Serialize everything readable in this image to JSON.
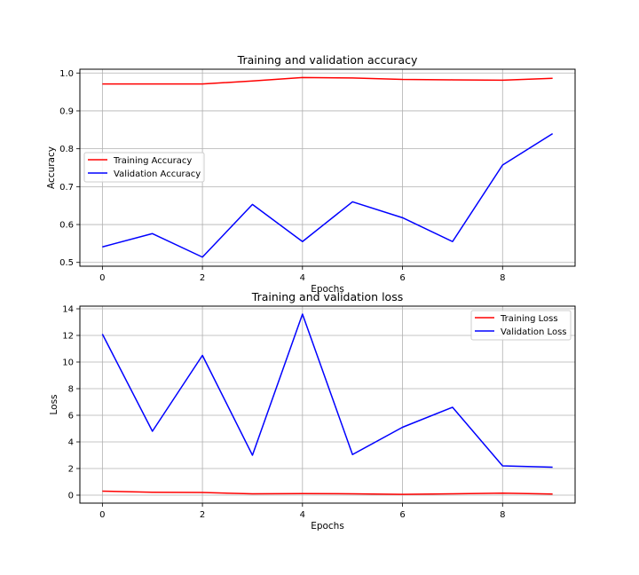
{
  "chart_data": [
    {
      "type": "line",
      "title": "Training and validation accuracy",
      "xlabel": "Epochs",
      "ylabel": "Accuracy",
      "x": [
        0,
        1,
        2,
        3,
        4,
        5,
        6,
        7,
        8,
        9
      ],
      "xlim": [
        -0.45,
        9.45
      ],
      "ylim": [
        0.49,
        1.01
      ],
      "xticks": [
        0,
        2,
        4,
        6,
        8
      ],
      "yticks": [
        0.5,
        0.6,
        0.7,
        0.8,
        0.9,
        1.0
      ],
      "xtick_labels": [
        "0",
        "2",
        "4",
        "6",
        "8"
      ],
      "ytick_labels": [
        "0.5",
        "0.6",
        "0.7",
        "0.8",
        "0.9",
        "1.0"
      ],
      "grid": true,
      "legend_position": "center-left",
      "series": [
        {
          "name": "Training Accuracy",
          "color": "#ff0000",
          "values": [
            0.971,
            0.971,
            0.971,
            0.979,
            0.988,
            0.987,
            0.983,
            0.982,
            0.981,
            0.986
          ]
        },
        {
          "name": "Validation Accuracy",
          "color": "#0000ff",
          "values": [
            0.541,
            0.576,
            0.514,
            0.653,
            0.555,
            0.66,
            0.618,
            0.555,
            0.757,
            0.84
          ]
        }
      ]
    },
    {
      "type": "line",
      "title": "Training and validation loss",
      "xlabel": "Epochs",
      "ylabel": "Loss",
      "x": [
        0,
        1,
        2,
        3,
        4,
        5,
        6,
        7,
        8,
        9
      ],
      "xlim": [
        -0.45,
        9.45
      ],
      "ylim": [
        -0.6,
        14.2
      ],
      "xticks": [
        0,
        2,
        4,
        6,
        8
      ],
      "yticks": [
        0,
        2,
        4,
        6,
        8,
        10,
        12,
        14
      ],
      "xtick_labels": [
        "0",
        "2",
        "4",
        "6",
        "8"
      ],
      "ytick_labels": [
        "0",
        "2",
        "4",
        "6",
        "8",
        "10",
        "12",
        "14"
      ],
      "grid": true,
      "legend_position": "top-right",
      "series": [
        {
          "name": "Training Loss",
          "color": "#ff0000",
          "values": [
            0.3,
            0.22,
            0.2,
            0.1,
            0.12,
            0.1,
            0.06,
            0.1,
            0.15,
            0.08
          ]
        },
        {
          "name": "Validation Loss",
          "color": "#0000ff",
          "values": [
            12.1,
            4.8,
            10.5,
            3.0,
            13.6,
            3.05,
            5.1,
            6.6,
            2.2,
            2.1
          ]
        }
      ]
    }
  ]
}
